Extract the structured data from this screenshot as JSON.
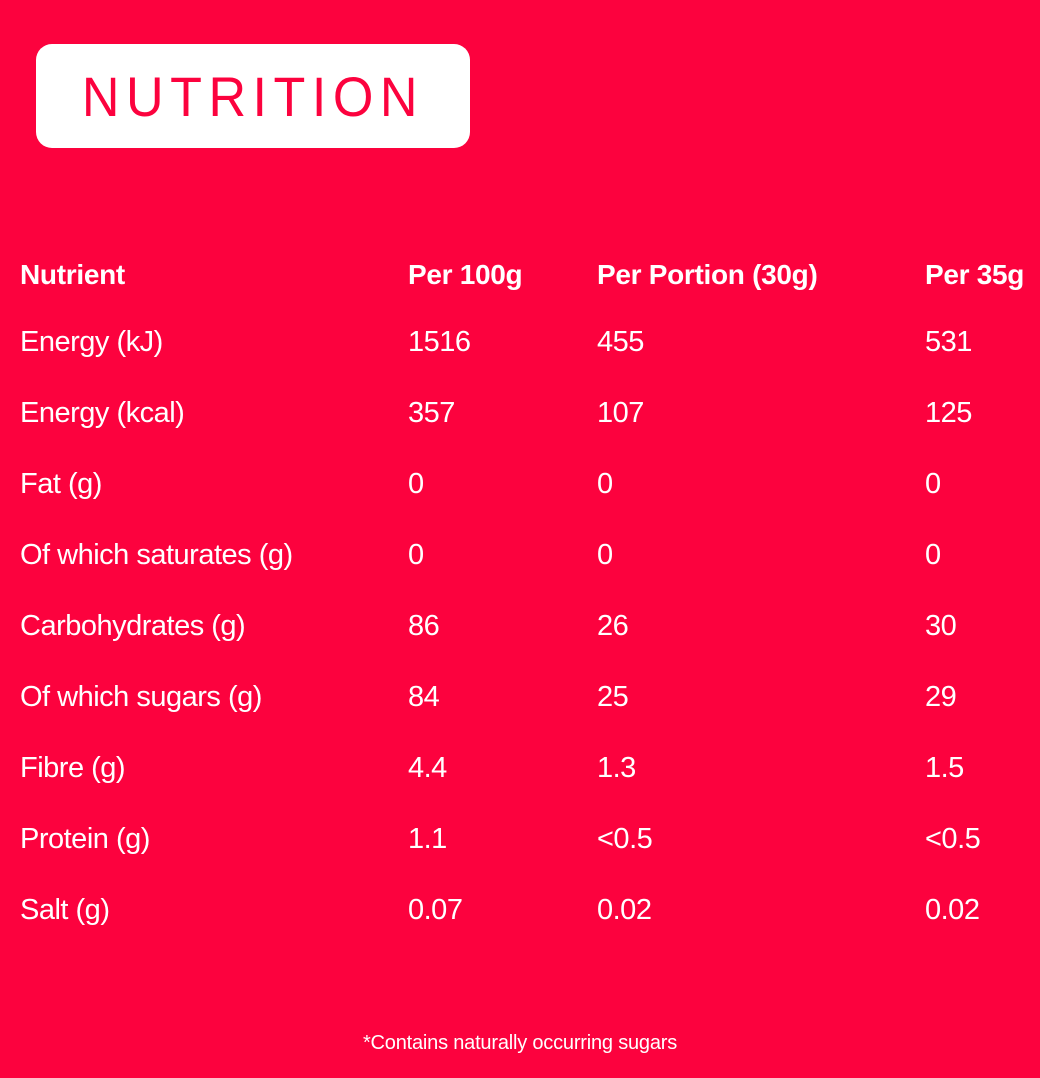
{
  "theme": {
    "background_color": "#FC023E",
    "text_color": "#FFFFFF",
    "badge_background_color": "#FFFFFF",
    "badge_text_color": "#FC023E"
  },
  "title": {
    "label": "NUTRITION"
  },
  "table": {
    "columns": [
      "Nutrient",
      "Per 100g",
      "Per Portion (30g)",
      "Per 35g"
    ],
    "rows": [
      [
        "Energy (kJ)",
        "1516",
        "455",
        "531"
      ],
      [
        "Energy (kcal)",
        "357",
        "107",
        "125"
      ],
      [
        "Fat (g)",
        "0",
        "0",
        "0"
      ],
      [
        "Of which saturates (g)",
        "0",
        "0",
        "0"
      ],
      [
        "Carbohydrates (g)",
        "86",
        "26",
        "30"
      ],
      [
        "Of which sugars (g)",
        "84",
        "25",
        "29"
      ],
      [
        "Fibre (g)",
        "4.4",
        "1.3",
        "1.5"
      ],
      [
        "Protein (g)",
        "1.1",
        "<0.5",
        "<0.5"
      ],
      [
        "Salt (g)",
        "0.07",
        "0.02",
        "0.02"
      ]
    ]
  },
  "footnote": "*Contains naturally occurring sugars"
}
